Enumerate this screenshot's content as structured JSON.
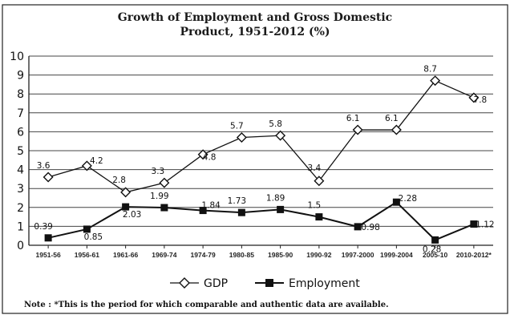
{
  "chart_data": {
    "type": "line",
    "title_lines": [
      "Growth of Employment and Gross Domestic",
      "Product, 1951-2012 (%)"
    ],
    "categories": [
      "1951-56",
      "1956-61",
      "1961-66",
      "1969-74",
      "1974-79",
      "1980-85",
      "1985-90",
      "1990-92",
      "1997-2000",
      "1999-2004",
      "2005-10",
      "2010-2012*"
    ],
    "series": [
      {
        "name": "GDP",
        "marker": "diamond",
        "values": [
          3.6,
          4.2,
          2.8,
          3.3,
          4.8,
          5.7,
          5.8,
          3.4,
          6.1,
          6.1,
          8.7,
          7.8
        ],
        "labels": [
          "3.6",
          "4.2",
          "2.8",
          "3.3",
          "4.8",
          "5.7",
          "5.8",
          "3.4",
          "6.1",
          "6.1",
          "8.7",
          "7.8"
        ]
      },
      {
        "name": "Employment",
        "marker": "square",
        "values": [
          0.39,
          0.85,
          2.03,
          1.99,
          1.84,
          1.73,
          1.89,
          1.5,
          0.98,
          2.28,
          0.28,
          1.12
        ],
        "labels": [
          "0.39",
          "0.85",
          "2.03",
          "1.99",
          "1.84",
          "1.73",
          "1.89",
          "1.5",
          "0.98",
          "2.28",
          "0.28",
          "1.12"
        ]
      }
    ],
    "ylim": [
      0,
      10
    ],
    "yticks": [
      "0",
      "1",
      "2",
      "3",
      "4",
      "5",
      "6",
      "7",
      "8",
      "9",
      "10"
    ],
    "grid": true,
    "legend_position": "bottom-center",
    "note": "Note : *This is the period for which comparable and authentic data are available."
  }
}
